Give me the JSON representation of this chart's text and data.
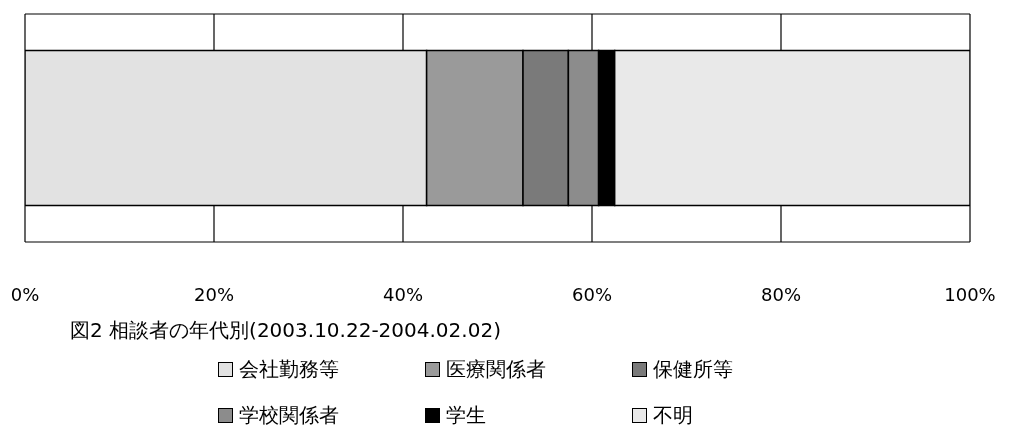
{
  "chart_data": {
    "type": "bar",
    "orientation": "horizontal",
    "stacked": true,
    "title": "図2 相談者の年代別(2003.10.22-2004.02.02)",
    "categories": [
      null
    ],
    "series": [
      {
        "name": "会社勤務等",
        "color": "#e2e2e2",
        "values": [
          42.5
        ]
      },
      {
        "name": "医療関係者",
        "color": "#9a9a9a",
        "values": [
          10.2
        ]
      },
      {
        "name": "保健所等",
        "color": "#7a7a7a",
        "values": [
          4.8
        ]
      },
      {
        "name": "学校関係者",
        "color": "#8c8c8c",
        "values": [
          3.2
        ]
      },
      {
        "name": "学生",
        "color": "#000000",
        "values": [
          1.7
        ]
      },
      {
        "name": "不明",
        "color": "#e9e9e9",
        "values": [
          37.6
        ]
      }
    ],
    "xlim": [
      0,
      100
    ],
    "xticks": [
      {
        "value": 0,
        "label": "0%"
      },
      {
        "value": 20,
        "label": "20%"
      },
      {
        "value": 40,
        "label": "40%"
      },
      {
        "value": 60,
        "label": "60%"
      },
      {
        "value": 80,
        "label": "80%"
      },
      {
        "value": 100,
        "label": "100%"
      }
    ],
    "grid": "x",
    "legend": "bottom",
    "tick_labels": "x"
  }
}
